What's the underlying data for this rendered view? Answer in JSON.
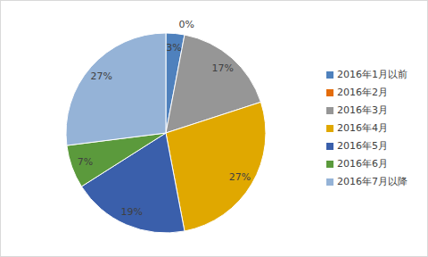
{
  "chart_data": {
    "type": "pie",
    "categories": [
      "2016年1月以前",
      "2016年2月",
      "2016年3月",
      "2016年4月",
      "2016年5月",
      "2016年6月",
      "2016年7月以降"
    ],
    "values": [
      3,
      0,
      17,
      27,
      19,
      7,
      27
    ],
    "value_labels": [
      "3%",
      "0%",
      "17%",
      "27%",
      "19%",
      "7%",
      "27%"
    ],
    "colors": [
      "#4f81bd",
      "#e46c0a",
      "#969696",
      "#e0a800",
      "#3a5fab",
      "#5b9a3c",
      "#95b3d7"
    ],
    "legend": "right",
    "data_labels": true
  }
}
